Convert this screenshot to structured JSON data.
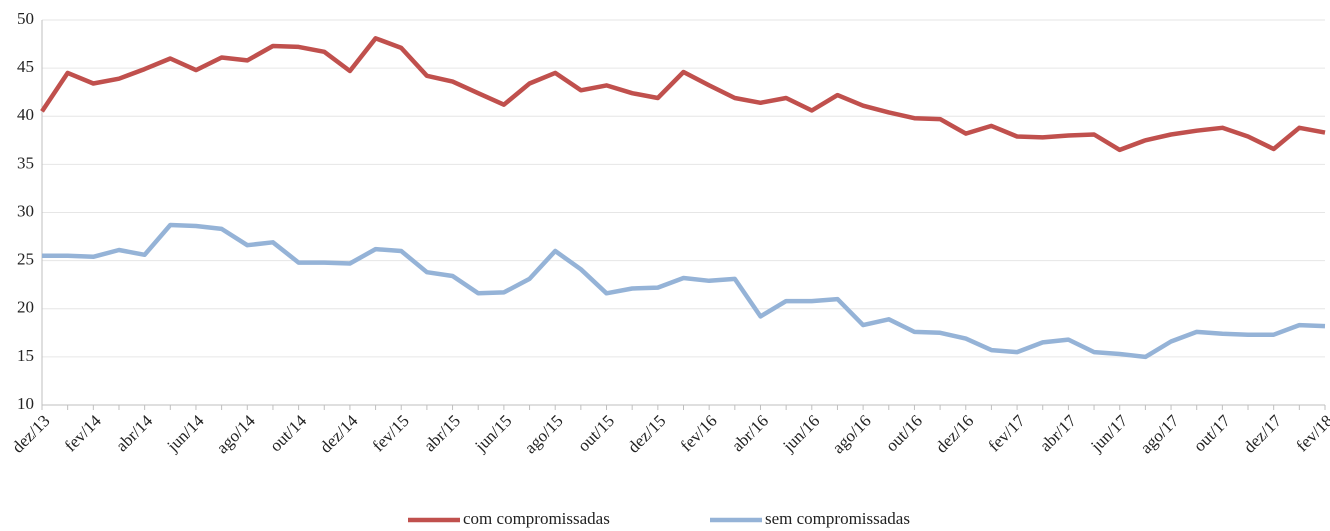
{
  "chart_data": {
    "type": "line",
    "categories": [
      "dez/13",
      null,
      "fev/14",
      null,
      "abr/14",
      null,
      "jun/14",
      null,
      "ago/14",
      null,
      "out/14",
      null,
      "dez/14",
      null,
      "fev/15",
      null,
      "abr/15",
      null,
      "jun/15",
      null,
      "ago/15",
      null,
      "out/15",
      null,
      "dez/15",
      null,
      "fev/16",
      null,
      "abr/16",
      null,
      "jun/16",
      null,
      "ago/16",
      null,
      "out/16",
      null,
      "dez/16",
      null,
      "fev/17",
      null,
      "abr/17",
      null,
      "jun/17",
      null,
      "ago/17",
      null,
      "out/17",
      null,
      "dez/17",
      null,
      "fev/18"
    ],
    "series": [
      {
        "name": "com compromissadas",
        "color": "#c0504d",
        "values": [
          40.5,
          44.5,
          43.4,
          43.9,
          44.9,
          46.0,
          44.8,
          46.1,
          45.8,
          47.3,
          47.2,
          46.7,
          44.7,
          48.1,
          47.1,
          44.2,
          43.6,
          42.4,
          41.2,
          43.4,
          44.5,
          42.7,
          43.2,
          42.4,
          41.9,
          44.6,
          43.2,
          41.9,
          41.4,
          41.9,
          40.6,
          42.2,
          41.1,
          40.4,
          39.8,
          39.7,
          38.2,
          39.0,
          37.9,
          37.8,
          38.0,
          38.1,
          36.5,
          37.5,
          38.1,
          38.5,
          38.8,
          37.9,
          36.6,
          38.8,
          38.3
        ]
      },
      {
        "name": "sem compromissadas",
        "color": "#95b3d7",
        "values": [
          25.5,
          25.5,
          25.4,
          26.1,
          25.6,
          28.7,
          28.6,
          28.3,
          26.6,
          26.9,
          24.8,
          24.8,
          24.7,
          26.2,
          26.0,
          23.8,
          23.4,
          21.6,
          21.7,
          23.1,
          26.0,
          24.1,
          21.6,
          22.1,
          22.2,
          23.2,
          22.9,
          23.1,
          19.2,
          20.8,
          20.8,
          21.0,
          18.3,
          18.9,
          17.6,
          17.5,
          16.9,
          15.7,
          15.5,
          16.5,
          16.8,
          15.5,
          15.3,
          15.0,
          16.6,
          17.6,
          17.4,
          17.3,
          17.3,
          18.3,
          18.2
        ]
      }
    ],
    "ylim": [
      10,
      50
    ],
    "yticks": [
      10,
      15,
      20,
      25,
      30,
      35,
      40,
      45,
      50
    ],
    "grid": true,
    "legend": "bottom"
  }
}
